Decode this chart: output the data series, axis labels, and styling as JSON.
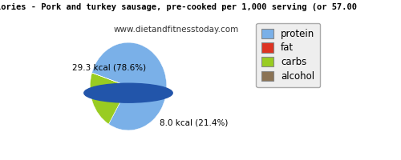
{
  "title_line1": "lories - Pork and turkey sausage, pre-cooked per 1,000 serving (or 57.00",
  "subtitle": "www.dietandfitnesstoday.com",
  "slices": [
    78.6,
    0.001,
    21.4,
    0.001
  ],
  "colors": [
    "#7ab0e8",
    "#dd3322",
    "#99cc22",
    "#997755"
  ],
  "legend_labels": [
    "protein",
    "fat",
    "carbs",
    "alcohol"
  ],
  "legend_colors": [
    "#7ab0e8",
    "#dd3322",
    "#99cc22",
    "#8b7355"
  ],
  "label_protein": "29.3 kcal (78.6%)",
  "label_carbs": "8.0 kcal (21.4%)",
  "startangle": 162,
  "bg_color": "#ffffff",
  "title_fontsize": 7.5,
  "subtitle_fontsize": 7.5,
  "label_fontsize": 7.5,
  "legend_fontsize": 8.5
}
